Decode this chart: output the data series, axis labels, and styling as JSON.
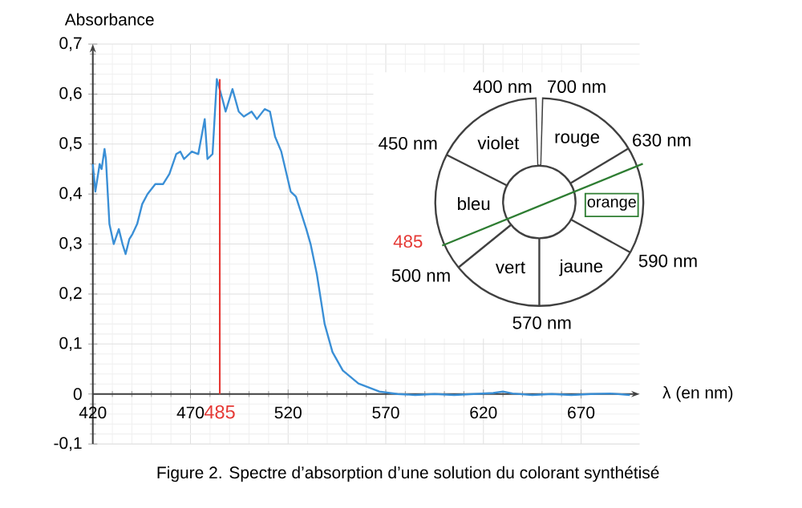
{
  "chart_data": {
    "type": "line",
    "xlabel": "λ (en nm)",
    "ylabel": "Absorbance",
    "x": [
      420,
      421.3,
      423.5,
      424.5,
      426,
      426.7,
      428.5,
      430.7,
      433.3,
      435.2,
      436.8,
      438.7,
      440.3,
      442.7,
      445.3,
      448,
      452,
      456,
      459.2,
      462.7,
      464.8,
      466.7,
      470.7,
      474,
      477.3,
      478.7,
      481.3,
      483.5,
      486.7,
      488,
      491.5,
      494.7,
      497.3,
      501.3,
      504,
      508,
      510.7,
      513.3,
      516.5,
      521.3,
      524,
      529.3,
      531.5,
      534.7,
      538.7,
      542.7,
      548,
      556,
      566.7,
      576,
      585,
      595,
      605,
      615,
      625,
      630,
      635,
      645,
      655,
      665,
      675,
      685,
      695
    ],
    "series": [
      {
        "color": "#3a8fd6",
        "values": [
          0.46,
          0.405,
          0.46,
          0.45,
          0.49,
          0.47,
          0.34,
          0.3,
          0.33,
          0.3,
          0.28,
          0.31,
          0.32,
          0.34,
          0.38,
          0.4,
          0.42,
          0.42,
          0.44,
          0.48,
          0.485,
          0.47,
          0.485,
          0.48,
          0.55,
          0.47,
          0.48,
          0.63,
          0.585,
          0.565,
          0.61,
          0.565,
          0.555,
          0.565,
          0.55,
          0.57,
          0.565,
          0.515,
          0.485,
          0.405,
          0.395,
          0.33,
          0.3,
          0.24,
          0.14,
          0.084,
          0.047,
          0.021,
          0.005,
          0.0,
          -0.002,
          0.0,
          -0.002,
          0.0,
          0.002,
          0.005,
          0.001,
          -0.002,
          0.0,
          -0.002,
          0.0,
          0.001,
          -0.002
        ]
      }
    ],
    "xlim": [
      420,
      700
    ],
    "ylim": [
      -0.1,
      0.7
    ],
    "xticks": [
      420,
      470,
      520,
      570,
      620,
      670
    ],
    "yticks": [
      {
        "value": -0.1,
        "label": "-0,1"
      },
      {
        "value": 0,
        "label": "0"
      },
      {
        "value": 0.1,
        "label": "0,1"
      },
      {
        "value": 0.2,
        "label": "0,2"
      },
      {
        "value": 0.3,
        "label": "0,3"
      },
      {
        "value": 0.4,
        "label": "0,4"
      },
      {
        "value": 0.5,
        "label": "0,5"
      },
      {
        "value": 0.6,
        "label": "0,6"
      },
      {
        "value": 0.7,
        "label": "0,7"
      }
    ],
    "grid": true,
    "ref_lines": [
      {
        "axis": "x",
        "value": 485,
        "label": "485",
        "color": "#e53935"
      }
    ],
    "annotations": [
      "Figure 2. Spectre d’absorption d’une solution du colorant synthétisé",
      "400 nm",
      "700 nm",
      "450 nm",
      "violet",
      "rouge",
      "630 nm",
      "bleu",
      "orange",
      "485",
      "590 nm",
      "500 nm",
      "vert",
      "jaune",
      "570 nm"
    ]
  }
}
